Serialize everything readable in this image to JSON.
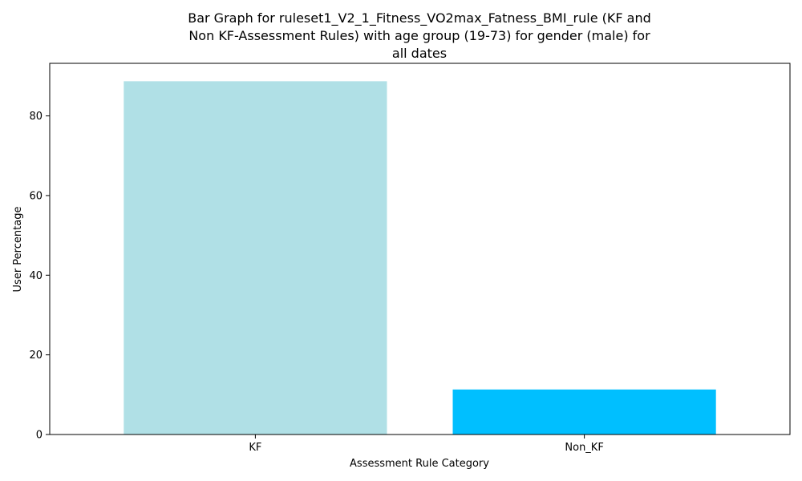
{
  "chart_data": {
    "type": "bar",
    "title_lines": [
      "Bar Graph for ruleset1_V2_1_Fitness_VO2max_Fatness_BMI_rule (KF and",
      "Non KF-Assessment Rules) with age group (19-73) for gender (male) for",
      "all dates"
    ],
    "xlabel": "Assessment Rule Category",
    "ylabel": "User Percentage",
    "categories": [
      "KF",
      "Non_KF"
    ],
    "values": [
      88.7,
      11.3
    ],
    "colors": [
      "#b0e0e6",
      "#00bfff"
    ],
    "ylim": [
      0,
      93.2
    ],
    "yticks": [
      0,
      20,
      40,
      60,
      80
    ],
    "grid": false
  }
}
